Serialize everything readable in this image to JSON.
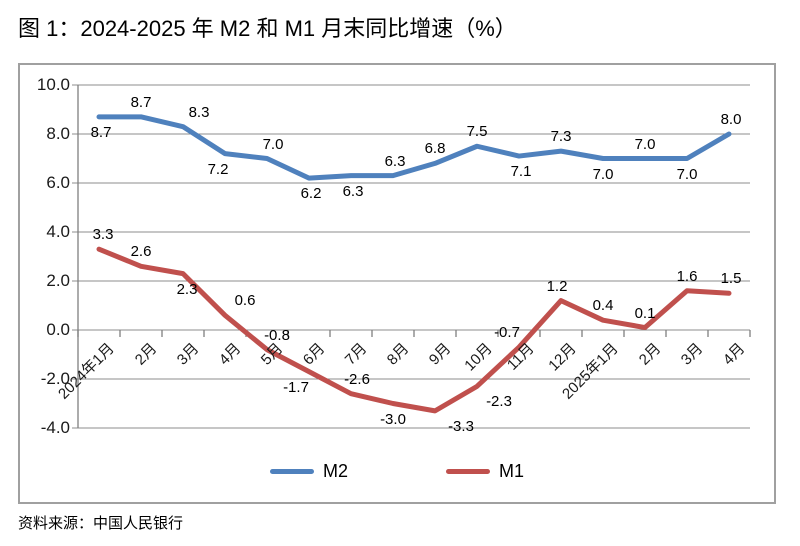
{
  "figure": {
    "title": "图 1：2024-2025 年 M2 和 M1 月末同比增速（%）",
    "source": "资料来源：中国人民银行"
  },
  "chart_data": {
    "type": "line",
    "title": "图 1：2024-2025 年 M2 和 M1 月末同比增速（%）",
    "categories": [
      "2024年1月",
      "2月",
      "3月",
      "4月",
      "5月",
      "6月",
      "7月",
      "8月",
      "9月",
      "10月",
      "11月",
      "12月",
      "2025年1月",
      "2月",
      "3月",
      "4月"
    ],
    "series": [
      {
        "name": "M2",
        "color": "#4F81BD",
        "values": [
          8.7,
          8.7,
          8.3,
          7.2,
          7.0,
          6.2,
          6.3,
          6.3,
          6.8,
          7.5,
          7.1,
          7.3,
          7.0,
          7.0,
          7.0,
          8.0
        ]
      },
      {
        "name": "M1",
        "color": "#C0504D",
        "values": [
          3.3,
          2.6,
          2.3,
          0.6,
          -0.8,
          -1.7,
          -2.6,
          -3.0,
          -3.3,
          -2.3,
          -0.7,
          1.2,
          0.4,
          0.1,
          1.6,
          1.5
        ]
      }
    ],
    "xlabel": "",
    "ylabel": "",
    "ylim": [
      -4.0,
      10.0
    ],
    "ytick_step": 2.0,
    "ytick_labels": [
      "10.0",
      "8.0",
      "6.0",
      "4.0",
      "2.0",
      "0.0",
      "-2.0",
      "-4.0"
    ],
    "grid": true,
    "data_labels": true,
    "label_decimals": 1,
    "legend_position": "bottom-center",
    "gridline_color": "#8C8C8C",
    "axis_color": "#7F7F7F",
    "source": "资料来源：中国人民银行"
  }
}
